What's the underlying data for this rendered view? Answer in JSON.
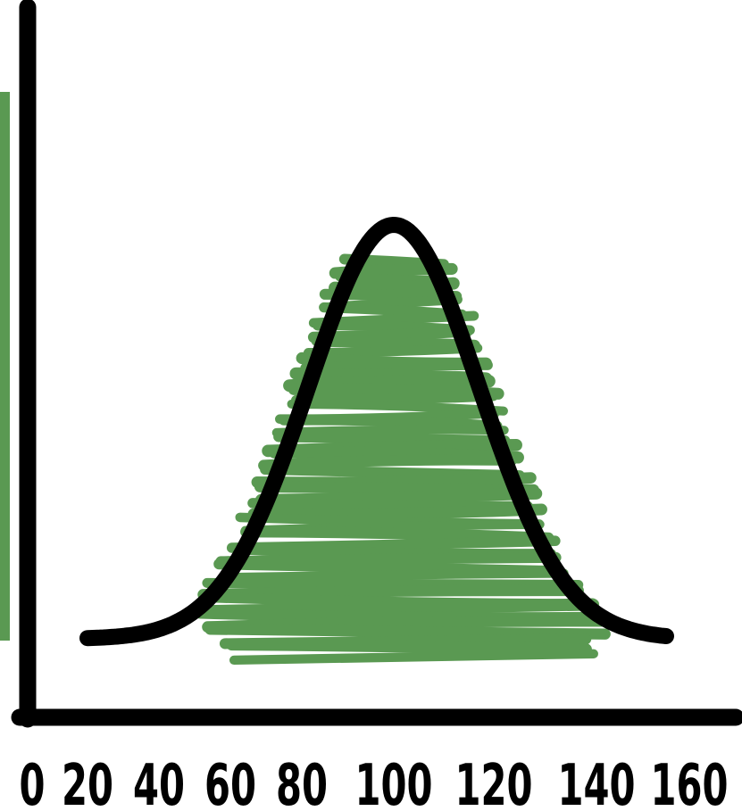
{
  "chart_data": {
    "type": "line",
    "title": "",
    "xlabel": "",
    "ylabel": "",
    "xlim": [
      0,
      160
    ],
    "x_ticks": [
      "0",
      "20",
      "40",
      "60",
      "80",
      "100",
      "120",
      "140",
      "160"
    ],
    "grid": false,
    "legend": "none",
    "series": [
      {
        "curve": "normal-distribution",
        "mean": 100,
        "x_range": [
          20,
          155
        ]
      }
    ],
    "shaded_region": {
      "x_from": 55,
      "x_to": 140,
      "fill": "scribble"
    },
    "colors": {
      "curve": "#000000",
      "axes": "#000000",
      "shading": "#5a9952",
      "side_bar": "#5a9952"
    }
  }
}
